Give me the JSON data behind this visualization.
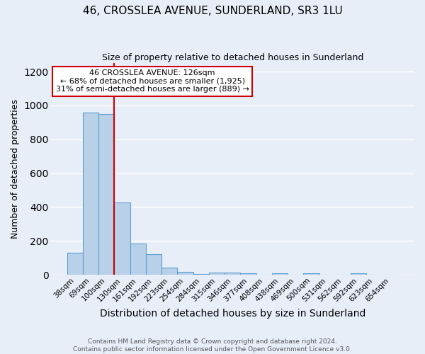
{
  "title": "46, CROSSLEA AVENUE, SUNDERLAND, SR3 1LU",
  "subtitle": "Size of property relative to detached houses in Sunderland",
  "xlabel": "Distribution of detached houses by size in Sunderland",
  "ylabel": "Number of detached properties",
  "categories": [
    "38sqm",
    "69sqm",
    "100sqm",
    "130sqm",
    "161sqm",
    "192sqm",
    "223sqm",
    "254sqm",
    "284sqm",
    "315sqm",
    "346sqm",
    "377sqm",
    "408sqm",
    "438sqm",
    "469sqm",
    "500sqm",
    "531sqm",
    "562sqm",
    "592sqm",
    "623sqm",
    "654sqm"
  ],
  "values": [
    128,
    958,
    950,
    428,
    185,
    123,
    40,
    18,
    5,
    13,
    13,
    10,
    0,
    8,
    0,
    8,
    0,
    0,
    10,
    0,
    0
  ],
  "bar_color": "#b8d0e8",
  "bar_edge_color": "#5a9fd4",
  "vline_x": 2.5,
  "vline_color": "#cc0000",
  "annotation_text": "46 CROSSLEA AVENUE: 126sqm\n← 68% of detached houses are smaller (1,925)\n31% of semi-detached houses are larger (889) →",
  "annotation_box_color": "white",
  "annotation_box_edge_color": "#cc0000",
  "ylim": [
    0,
    1250
  ],
  "yticks": [
    0,
    200,
    400,
    600,
    800,
    1000,
    1200
  ],
  "footer": "Contains HM Land Registry data © Crown copyright and database right 2024.\nContains public sector information licensed under the Open Government Licence v3.0.",
  "bg_color": "#e8eef8",
  "grid_color": "white",
  "title_fontsize": 11,
  "subtitle_fontsize": 9,
  "ylabel_fontsize": 9,
  "xlabel_fontsize": 10,
  "tick_fontsize": 7.5,
  "annotation_fontsize": 8,
  "footer_fontsize": 6.5
}
